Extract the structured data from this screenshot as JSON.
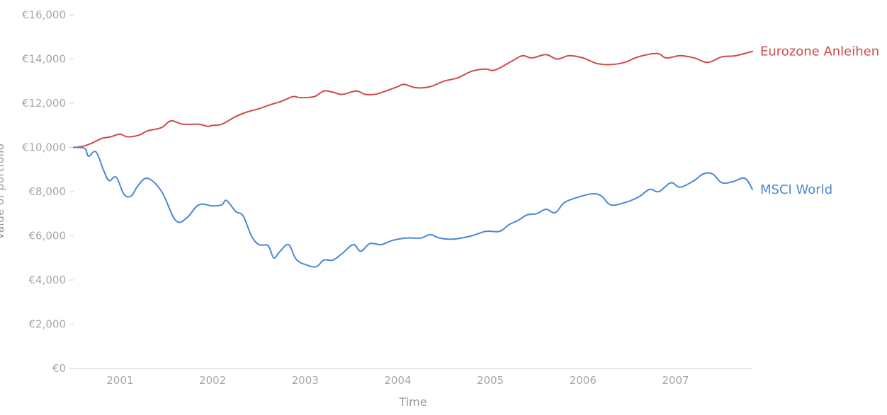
{
  "chart_data": {
    "type": "line",
    "xlabel": "Time",
    "ylabel": "Value of portfolio",
    "xlim": [
      2000.5,
      2007.83
    ],
    "ylim": [
      0,
      16000
    ],
    "x_ticks": [
      2001,
      2002,
      2003,
      2004,
      2005,
      2006,
      2007
    ],
    "x_tick_labels": [
      "2001",
      "2002",
      "2003",
      "2004",
      "2005",
      "2006",
      "2007"
    ],
    "y_ticks": [
      0,
      2000,
      4000,
      6000,
      8000,
      10000,
      12000,
      14000,
      16000
    ],
    "y_tick_labels": [
      "€0",
      "€2,000",
      "€4,000",
      "€6,000",
      "€8,000",
      "€10,000",
      "€12,000",
      "€14,000",
      "€16,000"
    ],
    "grid": false,
    "legend": "inline at line ends",
    "series": [
      {
        "name": "Eurozone Anleihen",
        "color": "#cf4b45",
        "points": [
          [
            2000.5,
            10000
          ],
          [
            2000.6,
            10050
          ],
          [
            2000.7,
            10200
          ],
          [
            2000.8,
            10400
          ],
          [
            2000.9,
            10480
          ],
          [
            2001.0,
            10600
          ],
          [
            2001.08,
            10480
          ],
          [
            2001.2,
            10550
          ],
          [
            2001.3,
            10750
          ],
          [
            2001.45,
            10900
          ],
          [
            2001.55,
            11200
          ],
          [
            2001.68,
            11050
          ],
          [
            2001.85,
            11050
          ],
          [
            2001.95,
            10950
          ],
          [
            2002.0,
            11000
          ],
          [
            2002.1,
            11050
          ],
          [
            2002.25,
            11400
          ],
          [
            2002.37,
            11600
          ],
          [
            2002.5,
            11750
          ],
          [
            2002.6,
            11900
          ],
          [
            2002.75,
            12100
          ],
          [
            2002.87,
            12300
          ],
          [
            2002.95,
            12250
          ],
          [
            2003.1,
            12300
          ],
          [
            2003.2,
            12550
          ],
          [
            2003.3,
            12500
          ],
          [
            2003.4,
            12400
          ],
          [
            2003.55,
            12550
          ],
          [
            2003.65,
            12400
          ],
          [
            2003.75,
            12400
          ],
          [
            2003.87,
            12550
          ],
          [
            2004.0,
            12750
          ],
          [
            2004.07,
            12850
          ],
          [
            2004.2,
            12700
          ],
          [
            2004.35,
            12750
          ],
          [
            2004.5,
            13000
          ],
          [
            2004.65,
            13150
          ],
          [
            2004.8,
            13450
          ],
          [
            2004.95,
            13550
          ],
          [
            2005.05,
            13500
          ],
          [
            2005.25,
            13950
          ],
          [
            2005.35,
            14150
          ],
          [
            2005.45,
            14050
          ],
          [
            2005.6,
            14200
          ],
          [
            2005.72,
            14000
          ],
          [
            2005.85,
            14150
          ],
          [
            2006.0,
            14050
          ],
          [
            2006.15,
            13800
          ],
          [
            2006.3,
            13750
          ],
          [
            2006.45,
            13850
          ],
          [
            2006.6,
            14100
          ],
          [
            2006.8,
            14250
          ],
          [
            2006.9,
            14050
          ],
          [
            2007.05,
            14150
          ],
          [
            2007.2,
            14050
          ],
          [
            2007.35,
            13850
          ],
          [
            2007.5,
            14100
          ],
          [
            2007.65,
            14150
          ],
          [
            2007.83,
            14350
          ]
        ]
      },
      {
        "name": "MSCI World",
        "color": "#4a87d6",
        "points": [
          [
            2000.5,
            10000
          ],
          [
            2000.62,
            9950
          ],
          [
            2000.66,
            9600
          ],
          [
            2000.74,
            9800
          ],
          [
            2000.82,
            9000
          ],
          [
            2000.88,
            8500
          ],
          [
            2000.96,
            8650
          ],
          [
            2001.04,
            7900
          ],
          [
            2001.12,
            7800
          ],
          [
            2001.2,
            8300
          ],
          [
            2001.3,
            8600
          ],
          [
            2001.45,
            8000
          ],
          [
            2001.6,
            6700
          ],
          [
            2001.72,
            6800
          ],
          [
            2001.85,
            7400
          ],
          [
            2002.0,
            7350
          ],
          [
            2002.1,
            7400
          ],
          [
            2002.15,
            7600
          ],
          [
            2002.25,
            7100
          ],
          [
            2002.33,
            6900
          ],
          [
            2002.42,
            6000
          ],
          [
            2002.5,
            5600
          ],
          [
            2002.6,
            5550
          ],
          [
            2002.66,
            5000
          ],
          [
            2002.72,
            5250
          ],
          [
            2002.82,
            5600
          ],
          [
            2002.9,
            4950
          ],
          [
            2003.0,
            4700
          ],
          [
            2003.12,
            4600
          ],
          [
            2003.2,
            4900
          ],
          [
            2003.3,
            4900
          ],
          [
            2003.4,
            5200
          ],
          [
            2003.52,
            5600
          ],
          [
            2003.6,
            5300
          ],
          [
            2003.7,
            5650
          ],
          [
            2003.82,
            5600
          ],
          [
            2003.95,
            5800
          ],
          [
            2004.1,
            5900
          ],
          [
            2004.25,
            5900
          ],
          [
            2004.35,
            6050
          ],
          [
            2004.45,
            5900
          ],
          [
            2004.6,
            5850
          ],
          [
            2004.8,
            6000
          ],
          [
            2004.95,
            6200
          ],
          [
            2005.1,
            6200
          ],
          [
            2005.2,
            6500
          ],
          [
            2005.3,
            6700
          ],
          [
            2005.4,
            6950
          ],
          [
            2005.5,
            7000
          ],
          [
            2005.6,
            7200
          ],
          [
            2005.7,
            7050
          ],
          [
            2005.8,
            7500
          ],
          [
            2005.95,
            7750
          ],
          [
            2006.1,
            7900
          ],
          [
            2006.2,
            7800
          ],
          [
            2006.3,
            7400
          ],
          [
            2006.45,
            7500
          ],
          [
            2006.6,
            7750
          ],
          [
            2006.72,
            8100
          ],
          [
            2006.82,
            8000
          ],
          [
            2006.95,
            8400
          ],
          [
            2007.05,
            8200
          ],
          [
            2007.2,
            8500
          ],
          [
            2007.3,
            8800
          ],
          [
            2007.4,
            8800
          ],
          [
            2007.5,
            8400
          ],
          [
            2007.62,
            8450
          ],
          [
            2007.75,
            8600
          ],
          [
            2007.83,
            8100
          ]
        ]
      }
    ]
  }
}
